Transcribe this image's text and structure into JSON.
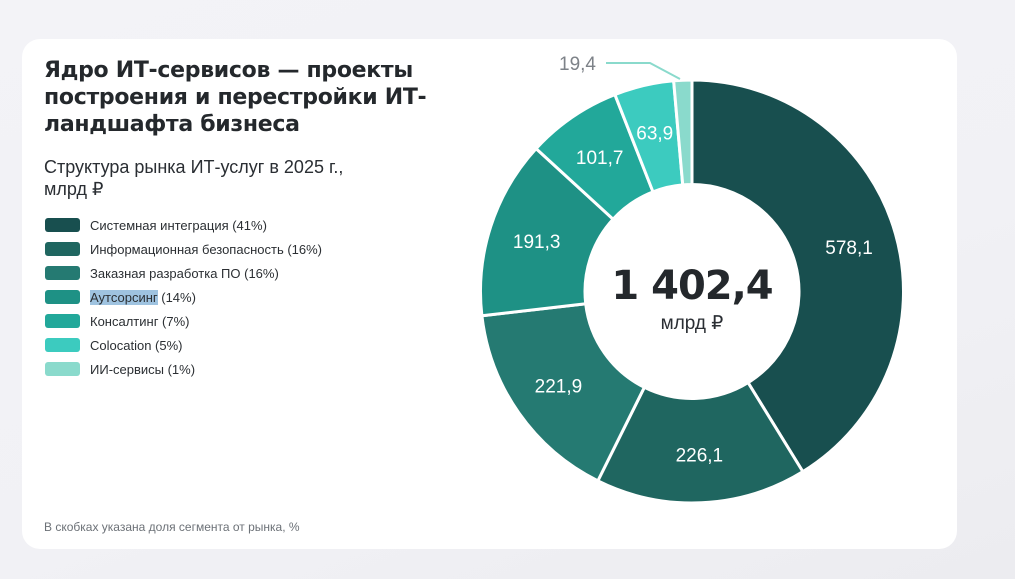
{
  "header": {
    "title": "Ядро ИТ-сервисов — проекты построения и перестройки ИТ-ландшафта бизнеса",
    "subtitle": "Структура рынка ИТ-услуг в 2025 г., млрд ₽"
  },
  "footnote": "В скобках указана доля сегмента от рынка, %",
  "chart_data": {
    "type": "pie",
    "variant": "donut",
    "title": "Структура рынка ИТ-услуг в 2025 г., млрд ₽",
    "unit": "млрд ₽",
    "total": 1402.4,
    "total_label": "1 402,4",
    "categories": [
      "Системная интеграция",
      "Информационная безопасность",
      "Заказная разработка ПО",
      "Аутсорсинг",
      "Консалтинг",
      "Colocation",
      "ИИ-сервисы"
    ],
    "values": [
      578.1,
      226.1,
      221.9,
      191.3,
      101.7,
      63.9,
      19.4
    ],
    "value_labels": [
      "578,1",
      "226,1",
      "221,9",
      "191,3",
      "101,7",
      "63,9",
      "19,4"
    ],
    "shares_percent": [
      41,
      16,
      16,
      14,
      7,
      5,
      1
    ],
    "colors": [
      "#184f4f",
      "#1f6660",
      "#257a72",
      "#1e9185",
      "#22a89a",
      "#3ccbbf",
      "#8adacc"
    ],
    "legend_position": "left",
    "start_angle": "12 o'clock, clockwise"
  },
  "legend": {
    "items": [
      {
        "label": "Системная интеграция (41%)",
        "color": "#184f4f"
      },
      {
        "label": "Информационная безопасность (16%)",
        "color": "#1f6660"
      },
      {
        "label": "Заказная разработка ПО (16%)",
        "color": "#257a72"
      },
      {
        "label_highlighted": "Аутсорсинг",
        "label_rest": " (14%)",
        "color": "#1e9185"
      },
      {
        "label": "Консалтинг (7%)",
        "color": "#22a89a"
      },
      {
        "label": "Colocation (5%)",
        "color": "#3ccbbf"
      },
      {
        "label": "ИИ-сервисы (1%)",
        "color": "#8adacc"
      }
    ]
  },
  "center": {
    "total": "1 402,4",
    "unit": "млрд ₽"
  }
}
